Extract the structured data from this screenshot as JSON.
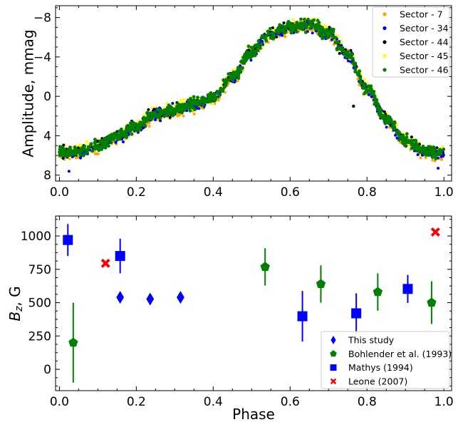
{
  "chart_data": [
    {
      "type": "scatter",
      "ylabel": "Amplitude, mmag",
      "xlim": [
        -0.01,
        1.02
      ],
      "ylim": [
        8.6,
        -9.2
      ],
      "x_ticks": [
        0.0,
        0.2,
        0.4,
        0.6,
        0.8,
        1.0
      ],
      "x_tick_labels": [
        "0.0",
        "0.2",
        "0.4",
        "0.6",
        "0.8",
        "1.0"
      ],
      "y_ticks": [
        -8,
        -4,
        0,
        4,
        8
      ],
      "y_tick_labels": [
        "−8",
        "−4",
        "0",
        "4",
        "8"
      ],
      "legend_position": "top-right",
      "curve": {
        "description": "shared light curve shape (phase, amplitude mmag)",
        "x": [
          0.0,
          0.05,
          0.1,
          0.15,
          0.2,
          0.25,
          0.3,
          0.35,
          0.4,
          0.45,
          0.5,
          0.55,
          0.6,
          0.65,
          0.7,
          0.75,
          0.8,
          0.85,
          0.9,
          0.95,
          1.0
        ],
        "y": [
          5.7,
          5.6,
          5.0,
          4.0,
          3.0,
          1.8,
          1.3,
          0.8,
          0.2,
          -2.0,
          -4.6,
          -6.3,
          -7.0,
          -7.3,
          -6.5,
          -4.2,
          -0.8,
          2.3,
          4.5,
          5.6,
          5.7
        ]
      },
      "series": [
        {
          "name": "Sector - 7",
          "color": "#ffa500",
          "offset": 0.4
        },
        {
          "name": "Sector - 34",
          "color": "#0000ff",
          "offset": 0.2
        },
        {
          "name": "Sector - 44",
          "color": "#000000",
          "offset": -0.1
        },
        {
          "name": "Sector - 45",
          "color": "#ffff00",
          "offset": -0.3
        },
        {
          "name": "Sector - 46",
          "color": "#008000",
          "offset": 0.0
        }
      ]
    },
    {
      "type": "scatter",
      "xlabel": "Phase",
      "ylabel": "B_z, G",
      "ylabel_main": "B",
      "ylabel_sub": "z",
      "ylabel_rest": ", G",
      "xlim": [
        -0.01,
        1.02
      ],
      "ylim": [
        -160,
        1150
      ],
      "x_ticks": [
        0.0,
        0.2,
        0.4,
        0.6,
        0.8,
        1.0
      ],
      "x_tick_labels": [
        "0.0",
        "0.2",
        "0.4",
        "0.6",
        "0.8",
        "1.0"
      ],
      "y_ticks": [
        0,
        250,
        500,
        750,
        1000
      ],
      "y_tick_labels": [
        "0",
        "250",
        "500",
        "750",
        "1000"
      ],
      "legend_position": "bottom-right",
      "series": [
        {
          "name": "This study",
          "color": "#0000ff",
          "marker": "diamond",
          "points": [
            {
              "x": 0.158,
              "y": 540,
              "err": 0
            },
            {
              "x": 0.236,
              "y": 527,
              "err": 0
            },
            {
              "x": 0.315,
              "y": 540,
              "err": 0
            }
          ]
        },
        {
          "name": "Bohlender et al. (1993)",
          "color": "#008000",
          "marker": "pentagon",
          "points": [
            {
              "x": 0.036,
              "y": 200,
              "err": 300
            },
            {
              "x": 0.535,
              "y": 768,
              "err": 140
            },
            {
              "x": 0.68,
              "y": 640,
              "err": 140
            },
            {
              "x": 0.828,
              "y": 580,
              "err": 140
            },
            {
              "x": 0.968,
              "y": 500,
              "err": 160
            }
          ]
        },
        {
          "name": "Mathys (1994)",
          "color": "#0000ff",
          "marker": "square",
          "points": [
            {
              "x": 0.022,
              "y": 970,
              "err": 120
            },
            {
              "x": 0.158,
              "y": 850,
              "err": 130
            },
            {
              "x": 0.632,
              "y": 398,
              "err": 190
            },
            {
              "x": 0.772,
              "y": 420,
              "err": 150
            },
            {
              "x": 0.906,
              "y": 603,
              "err": 105
            }
          ]
        },
        {
          "name": "Leone (2007)",
          "color": "#ff0000",
          "marker": "x",
          "points": [
            {
              "x": 0.12,
              "y": 795,
              "err": 0
            },
            {
              "x": 0.978,
              "y": 1030,
              "err": 0
            }
          ]
        }
      ]
    }
  ]
}
